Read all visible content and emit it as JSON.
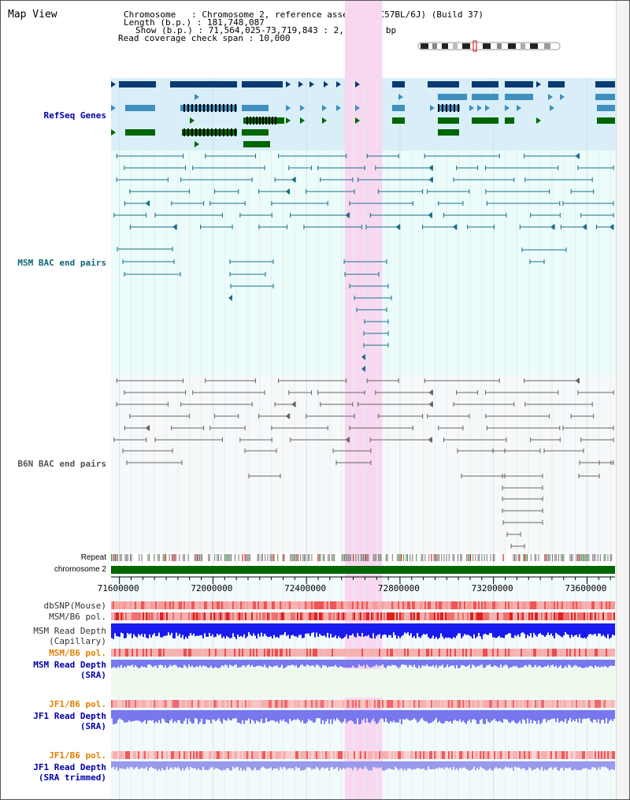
{
  "view_title": "Map View",
  "header": {
    "chromosome_line": "Chromosome   : Chromosome 2, reference assembly (C57BL/6J) (Build 37)",
    "length_line": "Length (b.p.) : 181,748,087",
    "show_line": "Show (b.p.) : 71,564,025-73,719,843 : 2,155,819 bp",
    "coverage_line": "Read coverage check span : 10,000"
  },
  "tracks": {
    "refseq_label": "RefSeq Genes",
    "msm_bac_label": "MSM BAC end pairs",
    "b6n_bac_label": "B6N BAC end pairs",
    "repeat_label": "Repeat",
    "chromosome_label": "chromosome 2",
    "dbsnp_label": "dbSNP(Mouse)",
    "msm_b6_pol_label": "MSM/B6 pol.",
    "msm_read_depth_cap_label_1": "MSM Read Depth",
    "msm_read_depth_cap_label_2": "(Capillary)",
    "msm_b6_pol_sra_label": "MSM/B6 pol.",
    "msm_read_depth_sra_label_1": "MSM Read Depth",
    "msm_read_depth_sra_label_2": "(SRA)",
    "jf1_b6_pol_label": "JF1/B6 pol.",
    "jf1_read_depth_label_1": "JF1 Read Depth",
    "jf1_read_depth_label_2": "(SRA)",
    "jf1_b6_pol_trim_label": "JF1/B6 pol.",
    "jf1_read_depth_trim_label_1": "JF1 Read Depth",
    "jf1_read_depth_trim_label_2": "(SRA trimmed)"
  },
  "axis": {
    "range": [
      71564025,
      73719843
    ],
    "ticks": [
      "71600000",
      "72000000",
      "72400000",
      "72800000",
      "73200000",
      "73600000"
    ]
  },
  "highlight": {
    "start": 72564025,
    "end": 72724025
  },
  "colors": {
    "gene_dark": "#0b3a73",
    "gene_mid": "#3f8fbf",
    "gene_green": "#006600",
    "refseq_bg": "#d8eef8",
    "msm_bg": "#ebfcfb",
    "msm_pair": "#1b6f8a",
    "b6n_bg": "#f7f8fa",
    "b6n_pair": "#666666",
    "highlight": "#f8d8f0",
    "label_blue": "#0000aa",
    "label_teal": "#116677",
    "label_orange": "#e08000",
    "chrom_green": "#006600",
    "depth_blue": "#1a1aee",
    "depth_sra": "#7777ee",
    "depth_trim": "#9999ee"
  }
}
